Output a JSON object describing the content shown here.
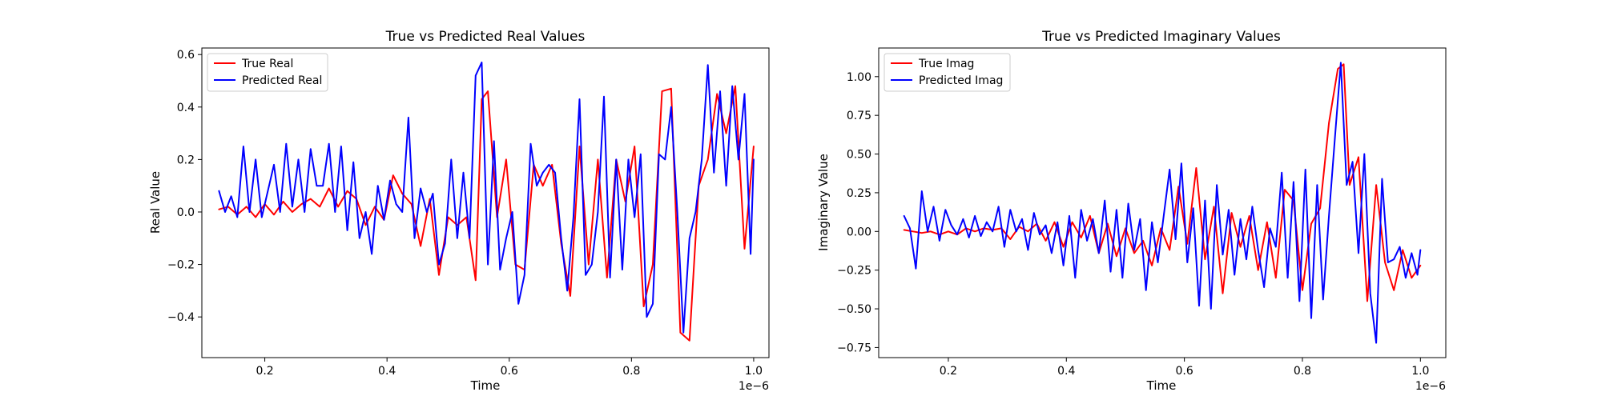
{
  "chart_data": [
    {
      "type": "line",
      "title": "True vs Predicted Real Values",
      "xlabel": "Time",
      "ylabel": "Real Value",
      "x_offset_label": "1e−6",
      "xlim": [
        0.097,
        1.025
      ],
      "ylim": [
        -0.555,
        0.625
      ],
      "xticks": [
        0.2,
        0.4,
        0.6,
        0.8,
        1.0
      ],
      "xtick_labels": [
        "0.2",
        "0.4",
        "0.6",
        "0.8",
        "1.0"
      ],
      "yticks": [
        -0.4,
        -0.2,
        0.0,
        0.2,
        0.4,
        0.6
      ],
      "ytick_labels": [
        "−0.4",
        "−0.2",
        "0.0",
        "0.2",
        "0.4",
        "0.6"
      ],
      "legend_position": "upper-left",
      "series": [
        {
          "name": "True Real",
          "color": "#ff0000",
          "x": [
            0.125,
            0.14,
            0.155,
            0.17,
            0.185,
            0.2,
            0.215,
            0.23,
            0.245,
            0.26,
            0.275,
            0.29,
            0.305,
            0.32,
            0.335,
            0.35,
            0.365,
            0.38,
            0.395,
            0.41,
            0.425,
            0.44,
            0.455,
            0.47,
            0.485,
            0.5,
            0.515,
            0.53,
            0.545,
            0.555,
            0.565,
            0.58,
            0.595,
            0.61,
            0.625,
            0.64,
            0.655,
            0.67,
            0.685,
            0.7,
            0.715,
            0.73,
            0.745,
            0.76,
            0.775,
            0.79,
            0.805,
            0.82,
            0.835,
            0.85,
            0.865,
            0.88,
            0.895,
            0.91,
            0.925,
            0.94,
            0.955,
            0.97,
            0.985,
            1.0
          ],
          "y": [
            0.01,
            0.02,
            -0.01,
            0.02,
            -0.02,
            0.03,
            -0.01,
            0.04,
            0.0,
            0.03,
            0.05,
            0.02,
            0.09,
            0.02,
            0.08,
            0.05,
            -0.05,
            0.02,
            -0.03,
            0.14,
            0.07,
            0.03,
            -0.13,
            0.05,
            -0.24,
            -0.02,
            -0.05,
            -0.02,
            -0.26,
            0.43,
            0.46,
            -0.02,
            0.2,
            -0.2,
            -0.22,
            0.18,
            0.1,
            0.18,
            -0.12,
            -0.32,
            0.25,
            -0.2,
            0.2,
            -0.25,
            0.2,
            0.04,
            0.25,
            -0.36,
            -0.2,
            0.46,
            0.47,
            -0.46,
            -0.49,
            0.1,
            0.2,
            0.45,
            0.3,
            0.48,
            -0.14,
            0.25
          ]
        },
        {
          "name": "Predicted Real",
          "color": "#0000ff",
          "x": [
            0.125,
            0.135,
            0.145,
            0.155,
            0.165,
            0.175,
            0.185,
            0.195,
            0.205,
            0.215,
            0.225,
            0.235,
            0.245,
            0.255,
            0.265,
            0.275,
            0.285,
            0.295,
            0.305,
            0.315,
            0.325,
            0.335,
            0.345,
            0.355,
            0.365,
            0.375,
            0.385,
            0.395,
            0.405,
            0.415,
            0.425,
            0.435,
            0.445,
            0.455,
            0.465,
            0.475,
            0.485,
            0.495,
            0.505,
            0.515,
            0.525,
            0.535,
            0.545,
            0.555,
            0.565,
            0.575,
            0.585,
            0.595,
            0.605,
            0.615,
            0.625,
            0.635,
            0.645,
            0.655,
            0.665,
            0.675,
            0.685,
            0.695,
            0.705,
            0.715,
            0.725,
            0.735,
            0.745,
            0.755,
            0.765,
            0.775,
            0.785,
            0.795,
            0.805,
            0.815,
            0.825,
            0.835,
            0.845,
            0.855,
            0.865,
            0.875,
            0.885,
            0.895,
            0.905,
            0.915,
            0.925,
            0.935,
            0.945,
            0.955,
            0.965,
            0.975,
            0.985,
            0.995,
            1.0
          ],
          "y": [
            0.08,
            0.0,
            0.06,
            -0.02,
            0.25,
            0.0,
            0.2,
            -0.02,
            0.08,
            0.18,
            0.0,
            0.26,
            0.02,
            0.2,
            0.0,
            0.24,
            0.1,
            0.1,
            0.26,
            0.0,
            0.25,
            -0.07,
            0.19,
            -0.1,
            0.0,
            -0.16,
            0.1,
            -0.03,
            0.12,
            0.03,
            0.0,
            0.36,
            -0.1,
            0.09,
            0.0,
            0.07,
            -0.2,
            -0.12,
            0.2,
            -0.1,
            0.15,
            -0.1,
            0.52,
            0.57,
            -0.2,
            0.27,
            -0.22,
            -0.1,
            0.0,
            -0.35,
            -0.24,
            0.26,
            0.1,
            0.15,
            0.18,
            0.15,
            -0.1,
            -0.3,
            -0.02,
            0.43,
            -0.24,
            -0.2,
            0.0,
            0.44,
            -0.25,
            0.2,
            -0.22,
            0.2,
            -0.02,
            0.22,
            -0.4,
            -0.35,
            0.22,
            0.2,
            0.4,
            0.0,
            -0.46,
            -0.1,
            0.0,
            0.2,
            0.56,
            0.15,
            0.46,
            0.1,
            0.48,
            0.2,
            0.45,
            -0.16,
            0.2
          ]
        }
      ]
    },
    {
      "type": "line",
      "title": "True vs Predicted Imaginary Values",
      "xlabel": "Time",
      "ylabel": "Imaginary Value",
      "x_offset_label": "1e−6",
      "xlim": [
        0.082,
        1.043
      ],
      "ylim": [
        -0.815,
        1.185
      ],
      "xticks": [
        0.2,
        0.4,
        0.6,
        0.8,
        1.0
      ],
      "xtick_labels": [
        "0.2",
        "0.4",
        "0.6",
        "0.8",
        "1.0"
      ],
      "yticks": [
        -0.75,
        -0.5,
        -0.25,
        0.0,
        0.25,
        0.5,
        0.75,
        1.0
      ],
      "ytick_labels": [
        "−0.75",
        "−0.50",
        "−0.25",
        "0.00",
        "0.25",
        "0.50",
        "0.75",
        "1.00"
      ],
      "legend_position": "upper-left",
      "series": [
        {
          "name": "True Imag",
          "color": "#ff0000",
          "x": [
            0.125,
            0.14,
            0.155,
            0.17,
            0.185,
            0.2,
            0.215,
            0.23,
            0.245,
            0.26,
            0.275,
            0.29,
            0.305,
            0.32,
            0.335,
            0.35,
            0.365,
            0.38,
            0.395,
            0.41,
            0.425,
            0.44,
            0.455,
            0.47,
            0.485,
            0.5,
            0.515,
            0.53,
            0.545,
            0.56,
            0.575,
            0.59,
            0.605,
            0.62,
            0.635,
            0.65,
            0.665,
            0.68,
            0.695,
            0.71,
            0.725,
            0.74,
            0.755,
            0.77,
            0.785,
            0.8,
            0.815,
            0.83,
            0.845,
            0.86,
            0.87,
            0.88,
            0.895,
            0.91,
            0.925,
            0.94,
            0.955,
            0.97,
            0.985,
            1.0
          ],
          "y": [
            0.01,
            0.0,
            -0.01,
            0.0,
            -0.02,
            0.0,
            -0.02,
            0.02,
            0.0,
            0.02,
            0.01,
            0.02,
            -0.05,
            0.03,
            0.0,
            0.05,
            -0.06,
            0.06,
            -0.1,
            0.06,
            -0.04,
            0.1,
            -0.14,
            0.05,
            -0.16,
            0.02,
            -0.14,
            -0.06,
            -0.22,
            0.02,
            -0.12,
            0.29,
            -0.08,
            0.41,
            -0.18,
            0.16,
            -0.4,
            0.12,
            -0.1,
            0.1,
            -0.25,
            0.06,
            -0.3,
            0.27,
            0.2,
            -0.38,
            0.05,
            0.15,
            0.7,
            1.05,
            1.08,
            0.3,
            0.48,
            -0.45,
            0.3,
            -0.2,
            -0.38,
            -0.12,
            -0.3,
            -0.22
          ]
        },
        {
          "name": "Predicted Imag",
          "color": "#0000ff",
          "x": [
            0.125,
            0.135,
            0.145,
            0.155,
            0.165,
            0.175,
            0.185,
            0.195,
            0.205,
            0.215,
            0.225,
            0.235,
            0.245,
            0.255,
            0.265,
            0.275,
            0.285,
            0.295,
            0.305,
            0.315,
            0.325,
            0.335,
            0.345,
            0.355,
            0.365,
            0.375,
            0.385,
            0.395,
            0.405,
            0.415,
            0.425,
            0.435,
            0.445,
            0.455,
            0.465,
            0.475,
            0.485,
            0.495,
            0.505,
            0.515,
            0.525,
            0.535,
            0.545,
            0.555,
            0.565,
            0.575,
            0.585,
            0.595,
            0.605,
            0.615,
            0.625,
            0.635,
            0.645,
            0.655,
            0.665,
            0.675,
            0.685,
            0.695,
            0.705,
            0.715,
            0.725,
            0.735,
            0.745,
            0.755,
            0.765,
            0.775,
            0.785,
            0.795,
            0.805,
            0.815,
            0.825,
            0.835,
            0.845,
            0.855,
            0.865,
            0.875,
            0.885,
            0.895,
            0.905,
            0.915,
            0.925,
            0.935,
            0.945,
            0.955,
            0.965,
            0.975,
            0.985,
            0.995,
            1.0
          ],
          "y": [
            0.1,
            0.02,
            -0.24,
            0.26,
            0.0,
            0.16,
            -0.06,
            0.14,
            0.04,
            -0.02,
            0.08,
            -0.04,
            0.1,
            -0.03,
            0.06,
            0.0,
            0.16,
            -0.1,
            0.14,
            0.0,
            0.08,
            -0.12,
            0.12,
            -0.02,
            0.04,
            -0.14,
            0.06,
            -0.22,
            0.1,
            -0.3,
            0.14,
            -0.06,
            0.08,
            -0.14,
            0.2,
            -0.26,
            0.14,
            -0.3,
            0.18,
            -0.12,
            0.08,
            -0.38,
            0.06,
            -0.2,
            0.1,
            0.4,
            -0.05,
            0.44,
            -0.2,
            0.15,
            -0.48,
            0.2,
            -0.5,
            0.3,
            -0.15,
            0.14,
            -0.28,
            0.08,
            -0.18,
            0.16,
            -0.12,
            -0.36,
            0.02,
            -0.1,
            0.38,
            -0.3,
            0.32,
            -0.45,
            0.4,
            -0.56,
            0.3,
            -0.44,
            0.1,
            0.6,
            1.09,
            0.3,
            0.45,
            -0.14,
            0.5,
            -0.4,
            -0.72,
            0.34,
            -0.2,
            -0.18,
            -0.1,
            -0.3,
            -0.14,
            -0.28,
            -0.12
          ]
        }
      ]
    }
  ]
}
